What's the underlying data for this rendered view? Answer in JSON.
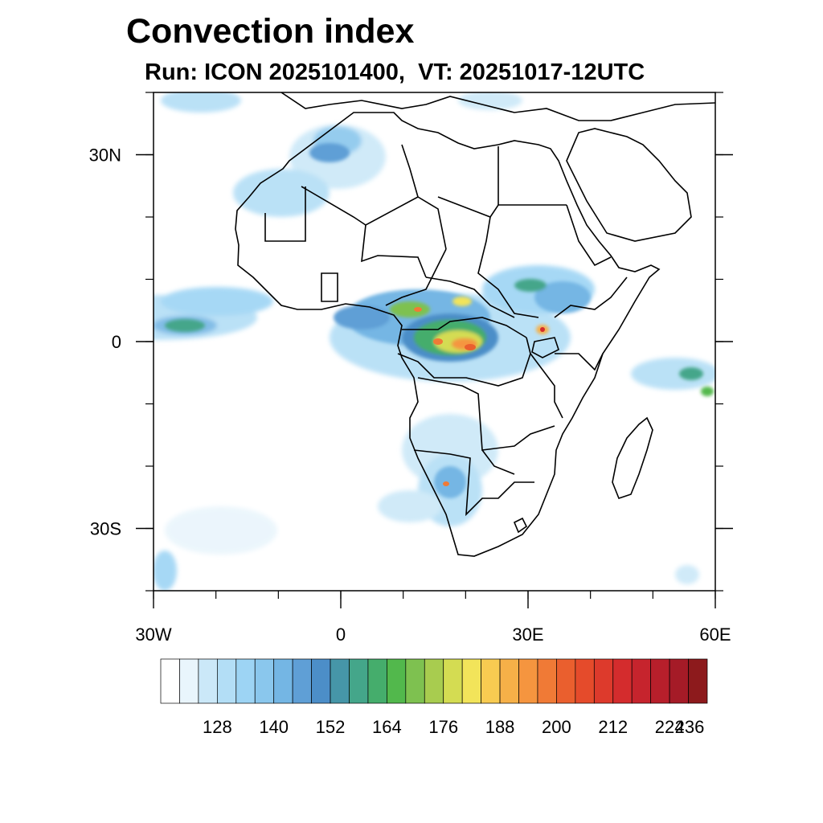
{
  "title": "Convection index",
  "subtitle": "Run: ICON 2025101400,  VT: 20251017-12UTC",
  "map": {
    "projection": "lat-lon",
    "lon_range": [
      -30,
      60
    ],
    "lat_range": [
      -40,
      40
    ],
    "x_ticks": [
      {
        "lon": -30,
        "label": "30W"
      },
      {
        "lon": 0,
        "label": "0"
      },
      {
        "lon": 30,
        "label": "30E"
      },
      {
        "lon": 60,
        "label": "60E"
      }
    ],
    "y_ticks": [
      {
        "lat": 30,
        "label": "30N"
      },
      {
        "lat": 0,
        "label": "0"
      },
      {
        "lat": -30,
        "label": "30S"
      }
    ],
    "minor_lon_step": 10,
    "minor_lat_step": 10
  },
  "colorbar": {
    "colors": [
      "#ffffff",
      "#e9f5fc",
      "#cbe8f8",
      "#b3def6",
      "#9dd4f4",
      "#8ac7ed",
      "#74b6e4",
      "#5f9fd6",
      "#4c8ec8",
      "#4696a8",
      "#44a68a",
      "#45ad6c",
      "#52b84c",
      "#7ec150",
      "#a8cc4f",
      "#d4dc52",
      "#f2e45a",
      "#f8cb51",
      "#f6b048",
      "#f5953f",
      "#f07a36",
      "#ea5f2e",
      "#e54b2b",
      "#dd3a2c",
      "#d42c2d",
      "#c6242d",
      "#b71f2b",
      "#a51b27",
      "#8d1a1c"
    ],
    "labels": [
      "128",
      "140",
      "152",
      "164",
      "176",
      "188",
      "200",
      "212",
      "224",
      "236"
    ],
    "label_after_box": [
      3,
      6,
      9,
      12,
      15,
      18,
      21,
      24,
      27,
      29
    ]
  }
}
